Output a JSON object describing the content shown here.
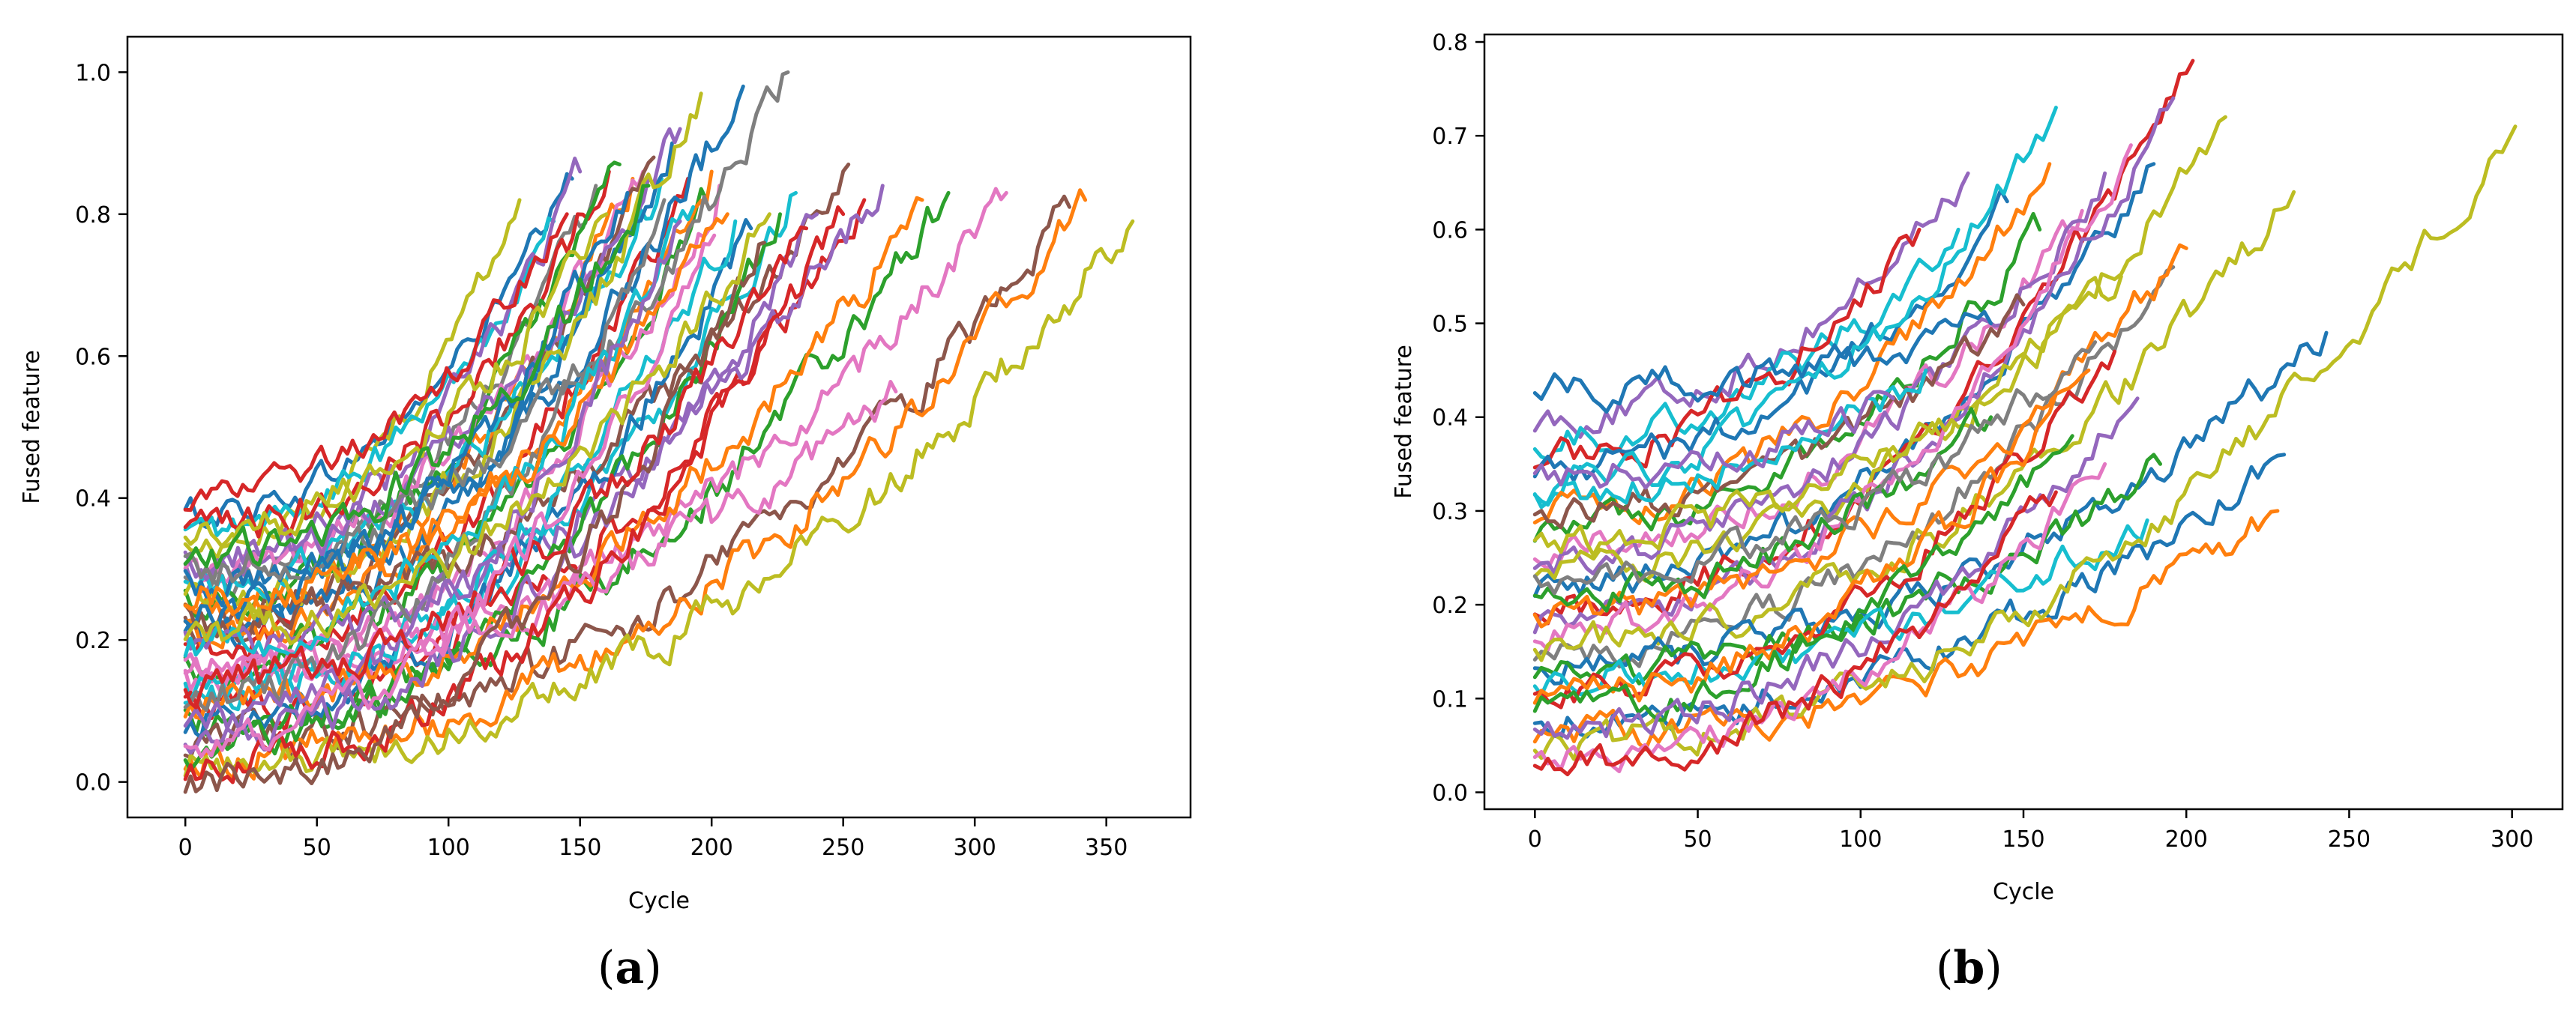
{
  "chart_data": [
    {
      "type": "line",
      "panel_label": "a",
      "xlabel": "Cycle",
      "ylabel": "Fused feature",
      "xlim": [
        -22,
        382
      ],
      "ylim": [
        -0.05,
        1.05
      ],
      "xticks": [
        "0",
        "50",
        "100",
        "150",
        "200",
        "250",
        "300",
        "350"
      ],
      "yticks": [
        "0.0",
        "0.2",
        "0.4",
        "0.6",
        "0.8",
        "1.0"
      ],
      "xtick_values": [
        0,
        50,
        100,
        150,
        200,
        250,
        300,
        350
      ],
      "ytick_values": [
        0.0,
        0.2,
        0.4,
        0.6,
        0.8,
        1.0
      ],
      "grid": false,
      "legend": "none",
      "series": [
        {
          "color": "#1f77b4",
          "start": 0.38,
          "end_x": 147,
          "end_y": 0.85,
          "noise": 0.012
        },
        {
          "color": "#bcbd22",
          "start": 0.33,
          "end_x": 127,
          "end_y": 0.82,
          "noise": 0.012
        },
        {
          "color": "#17becf",
          "start": 0.35,
          "end_x": 140,
          "end_y": 0.79,
          "noise": 0.012
        },
        {
          "color": "#9467bd",
          "start": 0.3,
          "end_x": 150,
          "end_y": 0.86,
          "noise": 0.015
        },
        {
          "color": "#7f7f7f",
          "start": 0.28,
          "end_x": 156,
          "end_y": 0.84,
          "noise": 0.015
        },
        {
          "color": "#d62728",
          "start": 0.35,
          "end_x": 161,
          "end_y": 0.86,
          "noise": 0.015
        },
        {
          "color": "#2ca02c",
          "start": 0.26,
          "end_x": 165,
          "end_y": 0.87,
          "noise": 0.015
        },
        {
          "color": "#ff7f0e",
          "start": 0.24,
          "end_x": 170,
          "end_y": 0.85,
          "noise": 0.015
        },
        {
          "color": "#e377c2",
          "start": 0.29,
          "end_x": 174,
          "end_y": 0.86,
          "noise": 0.015
        },
        {
          "color": "#8c564b",
          "start": 0.22,
          "end_x": 178,
          "end_y": 0.88,
          "noise": 0.015
        },
        {
          "color": "#17becf",
          "start": 0.27,
          "end_x": 181,
          "end_y": 0.85,
          "noise": 0.015
        },
        {
          "color": "#1f77b4",
          "start": 0.2,
          "end_x": 185,
          "end_y": 0.9,
          "noise": 0.015
        },
        {
          "color": "#9467bd",
          "start": 0.31,
          "end_x": 188,
          "end_y": 0.92,
          "noise": 0.015
        },
        {
          "color": "#d62728",
          "start": 0.18,
          "end_x": 191,
          "end_y": 0.85,
          "noise": 0.015
        },
        {
          "color": "#bcbd22",
          "start": 0.25,
          "end_x": 196,
          "end_y": 0.97,
          "noise": 0.015
        },
        {
          "color": "#2ca02c",
          "start": 0.16,
          "end_x": 198,
          "end_y": 0.82,
          "noise": 0.015
        },
        {
          "color": "#ff7f0e",
          "start": 0.21,
          "end_x": 200,
          "end_y": 0.86,
          "noise": 0.015
        },
        {
          "color": "#e377c2",
          "start": 0.14,
          "end_x": 203,
          "end_y": 0.84,
          "noise": 0.015
        },
        {
          "color": "#1f77b4",
          "start": 0.28,
          "end_x": 212,
          "end_y": 0.98,
          "noise": 0.015
        },
        {
          "color": "#7f7f7f",
          "start": 0.3,
          "end_x": 229,
          "end_y": 1.0,
          "noise": 0.015
        },
        {
          "color": "#17becf",
          "start": 0.12,
          "end_x": 232,
          "end_y": 0.83,
          "noise": 0.015
        },
        {
          "color": "#8c564b",
          "start": 0.23,
          "end_x": 252,
          "end_y": 0.87,
          "noise": 0.015
        },
        {
          "color": "#d62728",
          "start": 0.1,
          "end_x": 258,
          "end_y": 0.82,
          "noise": 0.015
        },
        {
          "color": "#9467bd",
          "start": 0.19,
          "end_x": 265,
          "end_y": 0.84,
          "noise": 0.015
        },
        {
          "color": "#2ca02c",
          "start": 0.08,
          "end_x": 290,
          "end_y": 0.83,
          "noise": 0.015
        },
        {
          "color": "#e377c2",
          "start": 0.15,
          "end_x": 312,
          "end_y": 0.83,
          "noise": 0.015
        },
        {
          "color": "#8c564b",
          "start": 0.06,
          "end_x": 336,
          "end_y": 0.81,
          "noise": 0.015
        },
        {
          "color": "#ff7f0e",
          "start": 0.04,
          "end_x": 342,
          "end_y": 0.82,
          "noise": 0.015
        },
        {
          "color": "#bcbd22",
          "start": 0.03,
          "end_x": 360,
          "end_y": 0.79,
          "noise": 0.015
        },
        {
          "color": "#d62728",
          "start": 0.4,
          "end_x": 145,
          "end_y": 0.8,
          "noise": 0.012
        },
        {
          "color": "#1f77b4",
          "start": 0.09,
          "end_x": 215,
          "end_y": 0.78,
          "noise": 0.015
        },
        {
          "color": "#2ca02c",
          "start": 0.05,
          "end_x": 226,
          "end_y": 0.8,
          "noise": 0.015
        },
        {
          "color": "#17becf",
          "start": 0.13,
          "end_x": 209,
          "end_y": 0.79,
          "noise": 0.015
        },
        {
          "color": "#ff7f0e",
          "start": 0.11,
          "end_x": 280,
          "end_y": 0.82,
          "noise": 0.015
        },
        {
          "color": "#9467bd",
          "start": 0.07,
          "end_x": 240,
          "end_y": 0.8,
          "noise": 0.015
        },
        {
          "color": "#e377c2",
          "start": 0.17,
          "end_x": 270,
          "end_y": 0.55,
          "noise": 0.015
        },
        {
          "color": "#d62728",
          "start": 0.02,
          "end_x": 250,
          "end_y": 0.8,
          "noise": 0.015
        },
        {
          "color": "#bcbd22",
          "start": 0.36,
          "end_x": 160,
          "end_y": 0.8,
          "noise": 0.015
        },
        {
          "color": "#7f7f7f",
          "start": 0.12,
          "end_x": 182,
          "end_y": 0.82,
          "noise": 0.015
        },
        {
          "color": "#8c564b",
          "start": 0.0,
          "end_x": 220,
          "end_y": 0.76,
          "noise": 0.015
        },
        {
          "color": "#1f77b4",
          "start": 0.24,
          "end_x": 168,
          "end_y": 0.83,
          "noise": 0.015
        },
        {
          "color": "#2ca02c",
          "start": 0.32,
          "end_x": 176,
          "end_y": 0.84,
          "noise": 0.015
        },
        {
          "color": "#17becf",
          "start": 0.19,
          "end_x": 193,
          "end_y": 0.81,
          "noise": 0.015
        },
        {
          "color": "#ff7f0e",
          "start": 0.26,
          "end_x": 206,
          "end_y": 0.8,
          "noise": 0.015
        },
        {
          "color": "#9467bd",
          "start": 0.09,
          "end_x": 188,
          "end_y": 0.79,
          "noise": 0.015
        },
        {
          "color": "#d62728",
          "start": 0.14,
          "end_x": 236,
          "end_y": 0.78,
          "noise": 0.015
        },
        {
          "color": "#e377c2",
          "start": 0.06,
          "end_x": 201,
          "end_y": 0.77,
          "noise": 0.015
        },
        {
          "color": "#bcbd22",
          "start": 0.21,
          "end_x": 222,
          "end_y": 0.8,
          "noise": 0.015
        }
      ]
    },
    {
      "type": "line",
      "panel_label": "b",
      "xlabel": "Cycle",
      "ylabel": "Fused feature",
      "xlim": [
        -15.5,
        315.5
      ],
      "ylim": [
        -0.018,
        0.808
      ],
      "xticks": [
        "0",
        "50",
        "100",
        "150",
        "200",
        "250",
        "300"
      ],
      "yticks": [
        "0.0",
        "0.1",
        "0.2",
        "0.3",
        "0.4",
        "0.5",
        "0.6",
        "0.7",
        "0.8"
      ],
      "xtick_values": [
        0,
        50,
        100,
        150,
        200,
        250,
        300
      ],
      "ytick_values": [
        0.0,
        0.1,
        0.2,
        0.3,
        0.4,
        0.5,
        0.6,
        0.7,
        0.8
      ],
      "grid": false,
      "legend": "none",
      "series": [
        {
          "color": "#9467bd",
          "start": 0.4,
          "end_x": 133,
          "end_y": 0.66,
          "noise": 0.01
        },
        {
          "color": "#17becf",
          "start": 0.38,
          "end_x": 130,
          "end_y": 0.6,
          "noise": 0.01
        },
        {
          "color": "#d62728",
          "start": 0.36,
          "end_x": 118,
          "end_y": 0.6,
          "noise": 0.01
        },
        {
          "color": "#1f77b4",
          "start": 0.35,
          "end_x": 145,
          "end_y": 0.63,
          "noise": 0.01
        },
        {
          "color": "#17becf",
          "start": 0.33,
          "end_x": 160,
          "end_y": 0.73,
          "noise": 0.01
        },
        {
          "color": "#ff7f0e",
          "start": 0.3,
          "end_x": 158,
          "end_y": 0.67,
          "noise": 0.01
        },
        {
          "color": "#2ca02c",
          "start": 0.28,
          "end_x": 155,
          "end_y": 0.6,
          "noise": 0.01
        },
        {
          "color": "#e377c2",
          "start": 0.26,
          "end_x": 168,
          "end_y": 0.62,
          "noise": 0.01
        },
        {
          "color": "#9467bd",
          "start": 0.25,
          "end_x": 175,
          "end_y": 0.66,
          "noise": 0.01
        },
        {
          "color": "#1f77b4",
          "start": 0.22,
          "end_x": 190,
          "end_y": 0.67,
          "noise": 0.01
        },
        {
          "color": "#d62728",
          "start": 0.2,
          "end_x": 202,
          "end_y": 0.78,
          "noise": 0.01
        },
        {
          "color": "#bcbd22",
          "start": 0.24,
          "end_x": 212,
          "end_y": 0.72,
          "noise": 0.01
        },
        {
          "color": "#9467bd",
          "start": 0.18,
          "end_x": 196,
          "end_y": 0.74,
          "noise": 0.01
        },
        {
          "color": "#e377c2",
          "start": 0.17,
          "end_x": 183,
          "end_y": 0.69,
          "noise": 0.01
        },
        {
          "color": "#7f7f7f",
          "start": 0.15,
          "end_x": 196,
          "end_y": 0.56,
          "noise": 0.01
        },
        {
          "color": "#bcbd22",
          "start": 0.16,
          "end_x": 233,
          "end_y": 0.64,
          "noise": 0.01
        },
        {
          "color": "#1f77b4",
          "start": 0.14,
          "end_x": 243,
          "end_y": 0.49,
          "noise": 0.01
        },
        {
          "color": "#2ca02c",
          "start": 0.13,
          "end_x": 192,
          "end_y": 0.35,
          "noise": 0.01
        },
        {
          "color": "#17becf",
          "start": 0.12,
          "end_x": 188,
          "end_y": 0.29,
          "noise": 0.01
        },
        {
          "color": "#1f77b4",
          "start": 0.08,
          "end_x": 230,
          "end_y": 0.36,
          "noise": 0.01
        },
        {
          "color": "#ff7f0e",
          "start": 0.06,
          "end_x": 228,
          "end_y": 0.3,
          "noise": 0.01
        },
        {
          "color": "#bcbd22",
          "start": 0.05,
          "end_x": 301,
          "end_y": 0.71,
          "noise": 0.01
        },
        {
          "color": "#d62728",
          "start": 0.11,
          "end_x": 178,
          "end_y": 0.47,
          "noise": 0.01
        },
        {
          "color": "#ff7f0e",
          "start": 0.1,
          "end_x": 170,
          "end_y": 0.45,
          "noise": 0.01
        },
        {
          "color": "#1f77b4",
          "start": 0.43,
          "end_x": 140,
          "end_y": 0.5,
          "noise": 0.01
        },
        {
          "color": "#8c564b",
          "start": 0.3,
          "end_x": 150,
          "end_y": 0.52,
          "noise": 0.01
        },
        {
          "color": "#2ca02c",
          "start": 0.09,
          "end_x": 165,
          "end_y": 0.38,
          "noise": 0.01
        },
        {
          "color": "#9467bd",
          "start": 0.07,
          "end_x": 185,
          "end_y": 0.42,
          "noise": 0.01
        },
        {
          "color": "#e377c2",
          "start": 0.04,
          "end_x": 175,
          "end_y": 0.35,
          "noise": 0.01
        },
        {
          "color": "#17becf",
          "start": 0.32,
          "end_x": 120,
          "end_y": 0.45,
          "noise": 0.01
        },
        {
          "color": "#d62728",
          "start": 0.03,
          "end_x": 160,
          "end_y": 0.32,
          "noise": 0.01
        },
        {
          "color": "#bcbd22",
          "start": 0.27,
          "end_x": 180,
          "end_y": 0.55,
          "noise": 0.01
        },
        {
          "color": "#ff7f0e",
          "start": 0.19,
          "end_x": 200,
          "end_y": 0.58,
          "noise": 0.01
        },
        {
          "color": "#2ca02c",
          "start": 0.21,
          "end_x": 140,
          "end_y": 0.4,
          "noise": 0.01
        },
        {
          "color": "#9467bd",
          "start": 0.34,
          "end_x": 110,
          "end_y": 0.42,
          "noise": 0.01
        },
        {
          "color": "#7f7f7f",
          "start": 0.23,
          "end_x": 172,
          "end_y": 0.48,
          "noise": 0.01
        }
      ]
    }
  ]
}
